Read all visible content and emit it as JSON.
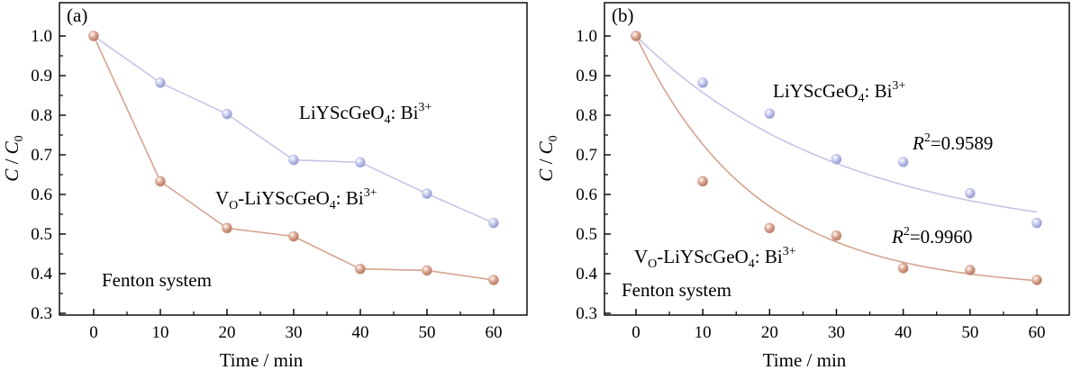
{
  "chart_data": [
    {
      "type": "line",
      "panel_label": "(a)",
      "xlabel": "Time / min",
      "ylabel_main": "C",
      "ylabel_sep": " / ",
      "ylabel_sub_base": "C",
      "ylabel_sub": "0",
      "x": [
        0,
        10,
        20,
        30,
        40,
        50,
        60
      ],
      "xlim": [
        -5,
        64
      ],
      "ylim": [
        0.3,
        1.05
      ],
      "xticks": [
        "0",
        "10",
        "20",
        "30",
        "40",
        "50",
        "60"
      ],
      "yticks": [
        "0.3",
        "0.4",
        "0.5",
        "0.6",
        "0.7",
        "0.8",
        "0.9",
        "1.0"
      ],
      "grid": false,
      "series": [
        {
          "name": "LiYScGeO4: Bi3+",
          "label_parts": {
            "a": "LiYScGeO",
            "sub": "4",
            "b": ": Bi",
            "sup": "3+"
          },
          "color": "#c5c5e8",
          "marker_color": "#b9bde6",
          "values": [
            1.0,
            0.882,
            0.803,
            0.687,
            0.681,
            0.602,
            0.528
          ]
        },
        {
          "name": "VO-LiYScGeO4: Bi3+",
          "label_parts": {
            "pre": "V",
            "pre_sub": "O",
            "a": "-LiYScGeO",
            "sub": "4",
            "b": ": Bi",
            "sup": "3+"
          },
          "color": "#d4a490",
          "marker_color": "#d39f8b",
          "values": [
            1.0,
            0.633,
            0.515,
            0.494,
            0.412,
            0.408,
            0.384
          ]
        }
      ],
      "annotations": {
        "system": "Fenton system"
      }
    },
    {
      "type": "scatter",
      "panel_label": "(b)",
      "xlabel": "Time / min",
      "ylabel_main": "C",
      "ylabel_sep": " / ",
      "ylabel_sub_base": "C",
      "ylabel_sub": "0",
      "x": [
        0,
        10,
        20,
        30,
        40,
        50,
        60
      ],
      "xlim": [
        -5,
        64
      ],
      "ylim": [
        0.3,
        1.05
      ],
      "xticks": [
        "0",
        "10",
        "20",
        "30",
        "40",
        "50",
        "60"
      ],
      "yticks": [
        "0.3",
        "0.4",
        "0.5",
        "0.6",
        "0.7",
        "0.8",
        "0.9",
        "1.0"
      ],
      "grid": false,
      "series": [
        {
          "name": "LiYScGeO4: Bi3+",
          "label_parts": {
            "a": "LiYScGeO",
            "sub": "4",
            "b": ": Bi",
            "sup": "3+"
          },
          "color": "#c5c5e8",
          "marker_color": "#b9bde6",
          "values": [
            1.0,
            0.882,
            0.804,
            0.689,
            0.682,
            0.603,
            0.528
          ],
          "fit": {
            "r2_symbol": "R",
            "r2_exp": "2",
            "r2_value": "=0.9589"
          }
        },
        {
          "name": "VO-LiYScGeO4: Bi3+",
          "label_parts": {
            "pre": "V",
            "pre_sub": "O",
            "a": "-LiYScGeO",
            "sub": "4",
            "b": ": Bi",
            "sup": "3+"
          },
          "color": "#d4a490",
          "marker_color": "#d39f8b",
          "values": [
            1.0,
            0.633,
            0.515,
            0.496,
            0.414,
            0.409,
            0.384
          ],
          "fit": {
            "r2_symbol": "R",
            "r2_exp": "2",
            "r2_value": "=0.9960"
          }
        }
      ],
      "annotations": {
        "system": "Fenton system"
      }
    }
  ]
}
